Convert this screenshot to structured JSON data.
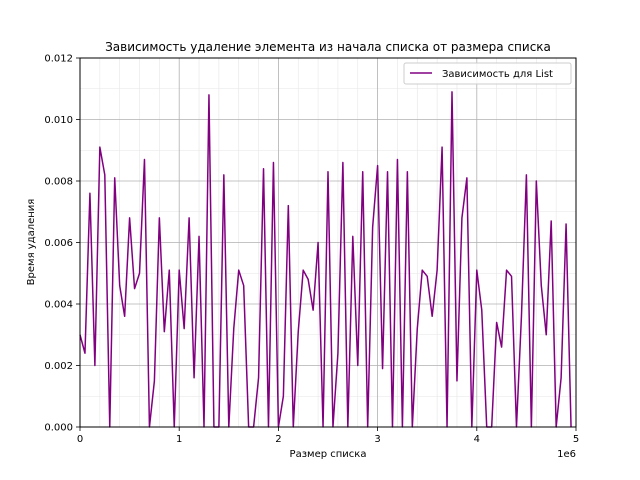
{
  "chart_data": {
    "type": "line",
    "title": "Зависимость удаление элемента из начала списка от размера списка",
    "xlabel": "Размер списка",
    "ylabel": "Время удаления",
    "x_offset_label": "1e6",
    "xlim": [
      0,
      5000000
    ],
    "ylim": [
      0,
      0.012
    ],
    "x_ticks": [
      0,
      1000000,
      2000000,
      3000000,
      4000000,
      5000000
    ],
    "x_tick_labels": [
      "0",
      "1",
      "2",
      "3",
      "4",
      "5"
    ],
    "y_ticks": [
      0,
      0.002,
      0.004,
      0.006,
      0.008,
      0.01,
      0.012
    ],
    "y_tick_labels": [
      "0.000",
      "0.002",
      "0.004",
      "0.006",
      "0.008",
      "0.010",
      "0.012"
    ],
    "grid": true,
    "legend_position": "upper right",
    "series": [
      {
        "name": "Зависимость для List",
        "color": "#800080",
        "points": [
          [
            0,
            0.003
          ],
          [
            50000,
            0.0024
          ],
          [
            100000,
            0.0076
          ],
          [
            150000,
            0.002
          ],
          [
            200000,
            0.0091
          ],
          [
            250000,
            0.0082
          ],
          [
            300000,
            0.0
          ],
          [
            350000,
            0.0081
          ],
          [
            400000,
            0.0046
          ],
          [
            450000,
            0.0036
          ],
          [
            500000,
            0.0068
          ],
          [
            550000,
            0.0045
          ],
          [
            600000,
            0.005
          ],
          [
            650000,
            0.0087
          ],
          [
            700000,
            0.0
          ],
          [
            750000,
            0.0015
          ],
          [
            800000,
            0.0068
          ],
          [
            850000,
            0.0031
          ],
          [
            900000,
            0.0051
          ],
          [
            950000,
            0.0
          ],
          [
            1000000,
            0.0051
          ],
          [
            1050000,
            0.0032
          ],
          [
            1100000,
            0.0068
          ],
          [
            1150000,
            0.0016
          ],
          [
            1200000,
            0.0062
          ],
          [
            1250000,
            0.0
          ],
          [
            1300000,
            0.0108
          ],
          [
            1350000,
            0.0
          ],
          [
            1400000,
            0.0
          ],
          [
            1450000,
            0.0082
          ],
          [
            1500000,
            0.0
          ],
          [
            1550000,
            0.0032
          ],
          [
            1600000,
            0.0051
          ],
          [
            1650000,
            0.0046
          ],
          [
            1700000,
            0.0
          ],
          [
            1750000,
            0.0
          ],
          [
            1800000,
            0.0016
          ],
          [
            1850000,
            0.0084
          ],
          [
            1900000,
            0.0
          ],
          [
            1950000,
            0.0086
          ],
          [
            2000000,
            0.0
          ],
          [
            2050000,
            0.001
          ],
          [
            2100000,
            0.0072
          ],
          [
            2150000,
            0.0
          ],
          [
            2200000,
            0.0031
          ],
          [
            2250000,
            0.0051
          ],
          [
            2300000,
            0.0048
          ],
          [
            2350000,
            0.0038
          ],
          [
            2400000,
            0.006
          ],
          [
            2450000,
            0.0
          ],
          [
            2500000,
            0.0083
          ],
          [
            2550000,
            0.0
          ],
          [
            2600000,
            0.0024
          ],
          [
            2650000,
            0.0086
          ],
          [
            2700000,
            0.0
          ],
          [
            2750000,
            0.0062
          ],
          [
            2800000,
            0.002
          ],
          [
            2850000,
            0.0083
          ],
          [
            2900000,
            0.0
          ],
          [
            2950000,
            0.0065
          ],
          [
            3000000,
            0.0085
          ],
          [
            3050000,
            0.0019
          ],
          [
            3100000,
            0.0083
          ],
          [
            3150000,
            0.0
          ],
          [
            3200000,
            0.0087
          ],
          [
            3250000,
            0.0
          ],
          [
            3300000,
            0.0083
          ],
          [
            3350000,
            0.0
          ],
          [
            3400000,
            0.0032
          ],
          [
            3450000,
            0.0051
          ],
          [
            3500000,
            0.0049
          ],
          [
            3550000,
            0.0036
          ],
          [
            3600000,
            0.0051
          ],
          [
            3650000,
            0.0091
          ],
          [
            3700000,
            0.0
          ],
          [
            3750000,
            0.0109
          ],
          [
            3800000,
            0.0015
          ],
          [
            3850000,
            0.0068
          ],
          [
            3900000,
            0.0081
          ],
          [
            3950000,
            0.0
          ],
          [
            4000000,
            0.0051
          ],
          [
            4050000,
            0.0038
          ],
          [
            4100000,
            0.0
          ],
          [
            4150000,
            0.0
          ],
          [
            4200000,
            0.0034
          ],
          [
            4250000,
            0.0026
          ],
          [
            4300000,
            0.0051
          ],
          [
            4350000,
            0.0049
          ],
          [
            4400000,
            0.0
          ],
          [
            4450000,
            0.0036
          ],
          [
            4500000,
            0.0082
          ],
          [
            4550000,
            0.0
          ],
          [
            4600000,
            0.008
          ],
          [
            4650000,
            0.0046
          ],
          [
            4700000,
            0.003
          ],
          [
            4750000,
            0.0067
          ],
          [
            4800000,
            0.0
          ],
          [
            4850000,
            0.0016
          ],
          [
            4900000,
            0.0066
          ],
          [
            4950000,
            0.0
          ]
        ]
      }
    ]
  }
}
